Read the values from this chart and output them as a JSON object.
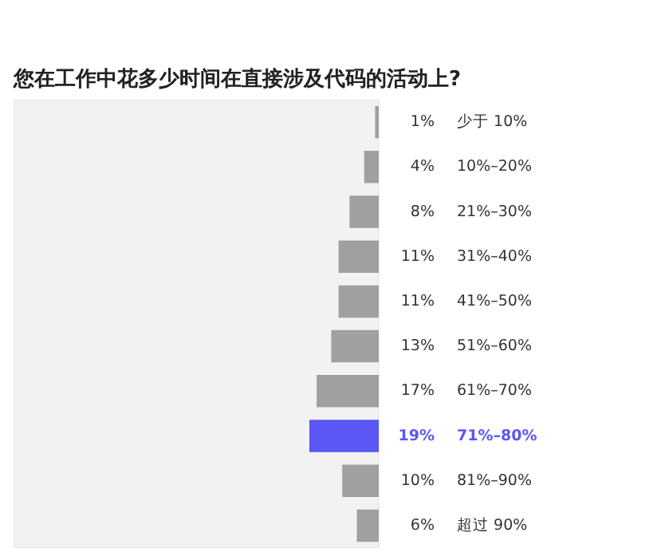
{
  "chart_data": {
    "type": "bar",
    "orientation": "horizontal",
    "title": "您在工作中花多少时间在直接涉及代码的活动上?",
    "categories": [
      "少于 10%",
      "10%–20%",
      "21%–30%",
      "31%–40%",
      "41%–50%",
      "51%–60%",
      "61%–70%",
      "71%–80%",
      "81%–90%",
      "超过 90%"
    ],
    "values": [
      1,
      4,
      8,
      11,
      11,
      13,
      17,
      19,
      10,
      6
    ],
    "colors": [
      "#a0a0a0",
      "#a0a0a0",
      "#a0a0a0",
      "#a0a0a0",
      "#a0a0a0",
      "#a0a0a0",
      "#a0a0a0",
      "#5b57f5",
      "#a0a0a0",
      "#a0a0a0"
    ],
    "value_labels": [
      "1%",
      "4%",
      "8%",
      "11%",
      "11%",
      "13%",
      "17%",
      "19%",
      "10%",
      "6%"
    ],
    "bands": [
      {
        "axis": "x",
        "from": 100,
        "to": 0,
        "color": "#f2f2f2"
      }
    ],
    "xlim": [
      100,
      0
    ],
    "tick_labels": false
  }
}
